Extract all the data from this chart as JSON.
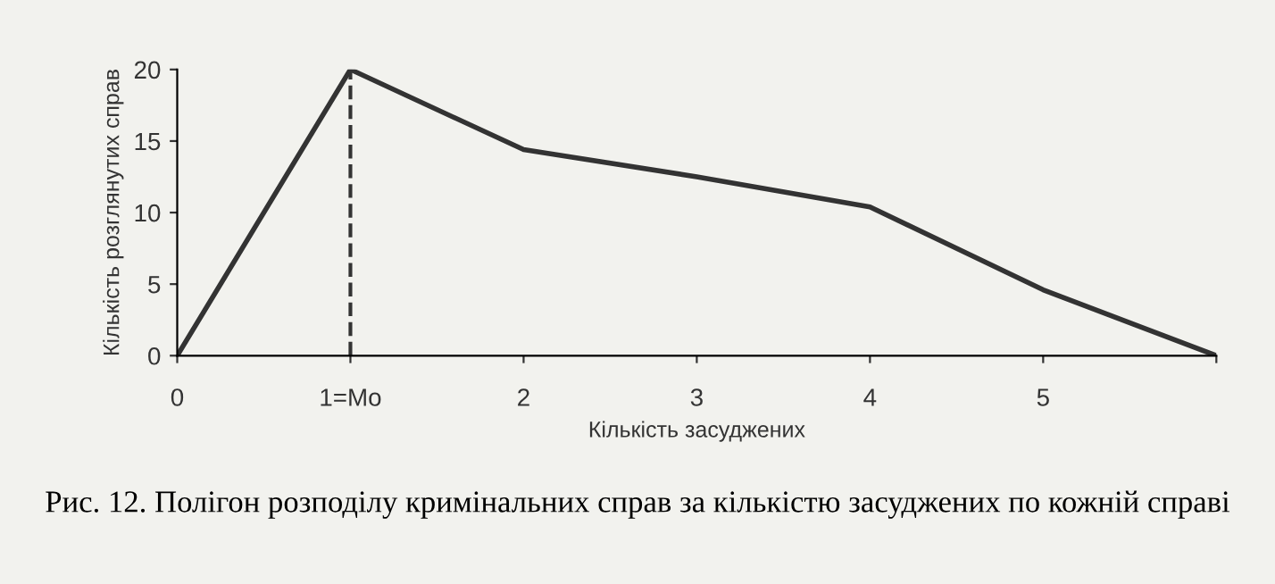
{
  "chart_data": {
    "type": "line",
    "xlabel": "Кількість засуджених",
    "ylabel": "Кількість розглянутих справ",
    "x": [
      0,
      1,
      2,
      3,
      4,
      5,
      6
    ],
    "series": [
      {
        "color": "#333333",
        "values": [
          0,
          20,
          14.4,
          12.5,
          10.4,
          4.6,
          0
        ]
      }
    ],
    "xlim": [
      0,
      6
    ],
    "xticks": [
      0,
      {
        "value": 1,
        "label": "1=Mo"
      },
      2,
      3,
      4,
      5,
      {
        "value": 6,
        "label": null
      }
    ],
    "ylim": [
      0,
      20
    ],
    "yticks": [
      0,
      5,
      10,
      15,
      20
    ],
    "ref_lines": [
      {
        "axis": "x",
        "value": 1,
        "label": null,
        "color": "#333333",
        "line_style": "dashed"
      }
    ],
    "grid": false,
    "marker": "none",
    "line_style": "solid",
    "annotations": [
      "Рис. 12. Полігон розподілу кримінальних справ за кількістю засуджених по кожній справі"
    ]
  }
}
